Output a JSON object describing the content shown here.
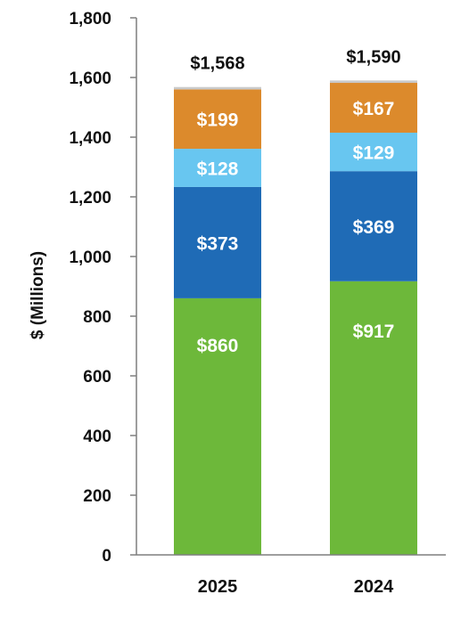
{
  "chart_data": {
    "type": "bar",
    "stacked": true,
    "categories": [
      "2025",
      "2024"
    ],
    "series": [
      {
        "values": [
          860,
          917
        ],
        "labels": [
          "$860",
          "$917"
        ],
        "color": "#6db83a"
      },
      {
        "values": [
          373,
          369
        ],
        "labels": [
          "$373",
          "$369"
        ],
        "color": "#1f6bb6"
      },
      {
        "values": [
          128,
          129
        ],
        "labels": [
          "$128",
          "$129"
        ],
        "color": "#68c6f0"
      },
      {
        "values": [
          199,
          167
        ],
        "labels": [
          "$199",
          "$167"
        ],
        "color": "#dc8a2c"
      },
      {
        "values": [
          8,
          8
        ],
        "labels": [
          "",
          ""
        ],
        "color": "#c9c9c9"
      }
    ],
    "totals": [
      "$1,568",
      "$1,590"
    ],
    "ylabel": "$ (Millions)",
    "ylim": [
      0,
      1800
    ],
    "yticks": [
      0,
      200,
      400,
      600,
      800,
      1000,
      1200,
      1400,
      1600,
      1800
    ],
    "ytick_labels": [
      "0",
      "200",
      "400",
      "600",
      "800",
      "1,000",
      "1,200",
      "1,400",
      "1,600",
      "1,800"
    ],
    "grid": false,
    "legend": "none"
  }
}
